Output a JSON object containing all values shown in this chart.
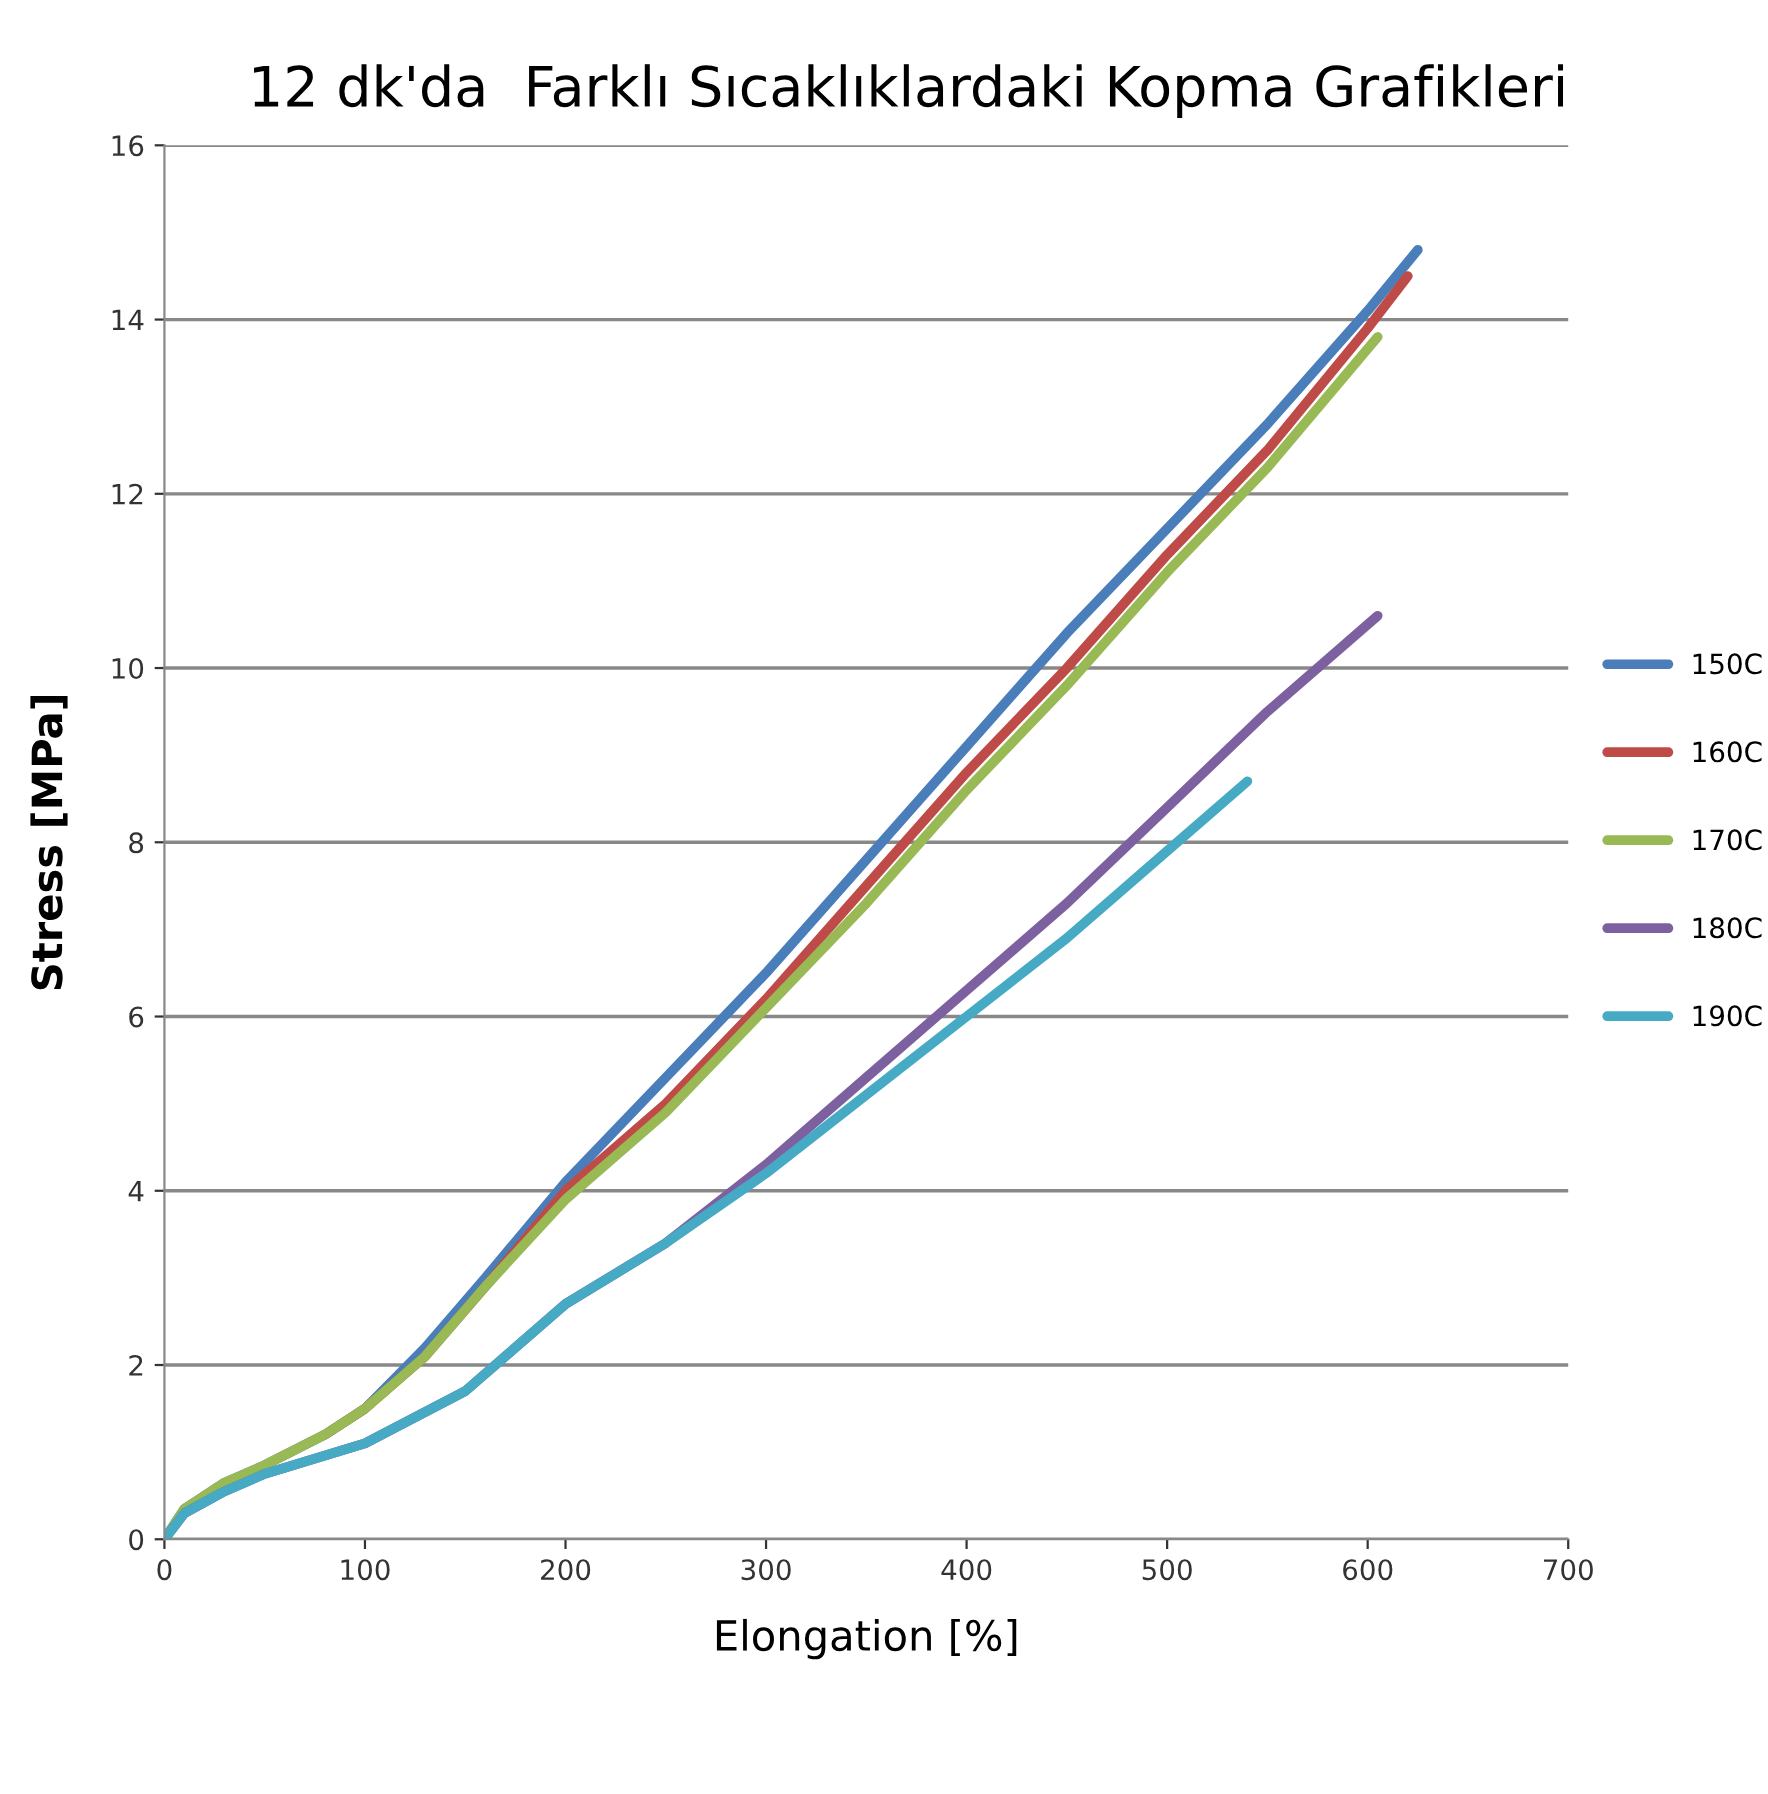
{
  "chart_data": {
    "type": "line",
    "title": "12 dk'da  Farklı Sıcaklıklardaki Kopma Grafikleri",
    "xlabel": "Elongation [%]",
    "ylabel": "Stress [MPa]",
    "xlim": [
      0,
      700
    ],
    "xticks": [
      0,
      100,
      200,
      300,
      400,
      500,
      600,
      700
    ],
    "ylim": [
      0,
      16
    ],
    "yticks": [
      0,
      2,
      4,
      6,
      8,
      10,
      12,
      14,
      16
    ],
    "grid": "y",
    "legend": "right",
    "marker": "none",
    "line_style": "solid",
    "series": [
      {
        "name": "150C",
        "color": "#4a7ebb",
        "x": [
          0,
          10,
          30,
          50,
          80,
          100,
          130,
          160,
          200,
          250,
          300,
          350,
          400,
          450,
          500,
          550,
          600,
          625
        ],
        "values": [
          0,
          0.35,
          0.65,
          0.85,
          1.2,
          1.5,
          2.2,
          3.0,
          4.1,
          5.3,
          6.5,
          7.8,
          9.1,
          10.4,
          11.6,
          12.8,
          14.1,
          14.8
        ]
      },
      {
        "name": "160C",
        "color": "#be4b48",
        "x": [
          80,
          100,
          130,
          160,
          200,
          250,
          300,
          350,
          400,
          450,
          500,
          550,
          600,
          620
        ],
        "values": [
          1.2,
          1.5,
          2.1,
          2.9,
          4.0,
          5.0,
          6.2,
          7.5,
          8.8,
          10.0,
          11.3,
          12.5,
          13.9,
          14.5
        ]
      },
      {
        "name": "170C",
        "color": "#98b954",
        "x": [
          0,
          10,
          30,
          50,
          80,
          100,
          130,
          160,
          200,
          250,
          300,
          350,
          400,
          450,
          500,
          550,
          605
        ],
        "values": [
          0,
          0.35,
          0.65,
          0.85,
          1.2,
          1.5,
          2.1,
          2.9,
          3.9,
          4.9,
          6.1,
          7.3,
          8.6,
          9.8,
          11.1,
          12.3,
          13.8
        ]
      },
      {
        "name": "180C",
        "color": "#7d60a0",
        "x": [
          0,
          10,
          30,
          50,
          100,
          150,
          200,
          250,
          300,
          350,
          400,
          450,
          500,
          550,
          605
        ],
        "values": [
          0,
          0.3,
          0.55,
          0.75,
          1.1,
          1.7,
          2.7,
          3.4,
          4.3,
          5.3,
          6.3,
          7.3,
          8.4,
          9.5,
          10.6
        ]
      },
      {
        "name": "190C",
        "color": "#46aac5",
        "x": [
          0,
          10,
          30,
          50,
          100,
          150,
          200,
          250,
          300,
          350,
          400,
          450,
          500,
          540
        ],
        "values": [
          0,
          0.3,
          0.55,
          0.75,
          1.1,
          1.7,
          2.7,
          3.4,
          4.2,
          5.1,
          6.0,
          6.9,
          7.9,
          8.7
        ]
      }
    ]
  }
}
